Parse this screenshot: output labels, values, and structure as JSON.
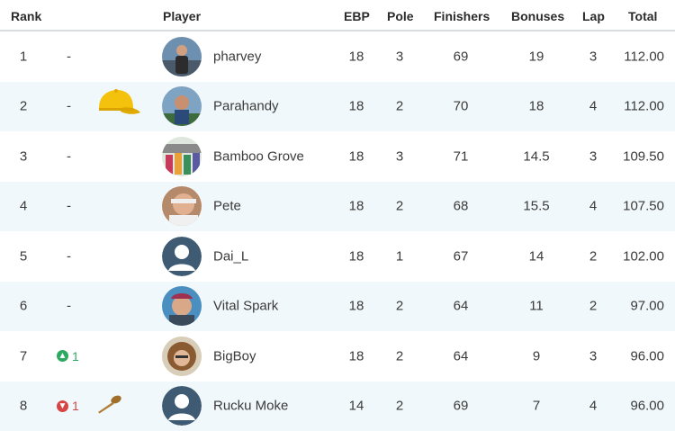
{
  "headers": {
    "rank": "Rank",
    "player": "Player",
    "ebp": "EBP",
    "pole": "Pole",
    "finishers": "Finishers",
    "bonuses": "Bonuses",
    "lap": "Lap",
    "total": "Total"
  },
  "rows": [
    {
      "rank": "1",
      "move": "-",
      "name": "pharvey",
      "ebp": "18",
      "pole": "3",
      "finishers": "69",
      "bonuses": "19",
      "lap": "3",
      "total": "112.00"
    },
    {
      "rank": "2",
      "move": "-",
      "name": "Parahandy",
      "ebp": "18",
      "pole": "2",
      "finishers": "70",
      "bonuses": "18",
      "lap": "4",
      "total": "112.00",
      "badge": "yellow-cap-icon"
    },
    {
      "rank": "3",
      "move": "-",
      "name": "Bamboo Grove",
      "ebp": "18",
      "pole": "3",
      "finishers": "71",
      "bonuses": "14.5",
      "lap": "3",
      "total": "109.50"
    },
    {
      "rank": "4",
      "move": "-",
      "name": "Pete",
      "ebp": "18",
      "pole": "2",
      "finishers": "68",
      "bonuses": "15.5",
      "lap": "4",
      "total": "107.50"
    },
    {
      "rank": "5",
      "move": "-",
      "name": "Dai_L",
      "ebp": "18",
      "pole": "1",
      "finishers": "67",
      "bonuses": "14",
      "lap": "2",
      "total": "102.00"
    },
    {
      "rank": "6",
      "move": "-",
      "name": "Vital Spark",
      "ebp": "18",
      "pole": "2",
      "finishers": "64",
      "bonuses": "11",
      "lap": "2",
      "total": "97.00"
    },
    {
      "rank": "7",
      "move_dir": "up",
      "move_val": "1",
      "name": "BigBoy",
      "ebp": "18",
      "pole": "2",
      "finishers": "64",
      "bonuses": "9",
      "lap": "3",
      "total": "96.00"
    },
    {
      "rank": "8",
      "move_dir": "down",
      "move_val": "1",
      "name": "Rucku Moke",
      "ebp": "14",
      "pole": "2",
      "finishers": "69",
      "bonuses": "7",
      "lap": "4",
      "total": "96.00",
      "badge": "wooden-spoon-icon"
    }
  ],
  "colors": {
    "row_alt": "#f1f8fb",
    "up": "#2eaa60",
    "down": "#d64545",
    "cap": "#f4c20d"
  }
}
